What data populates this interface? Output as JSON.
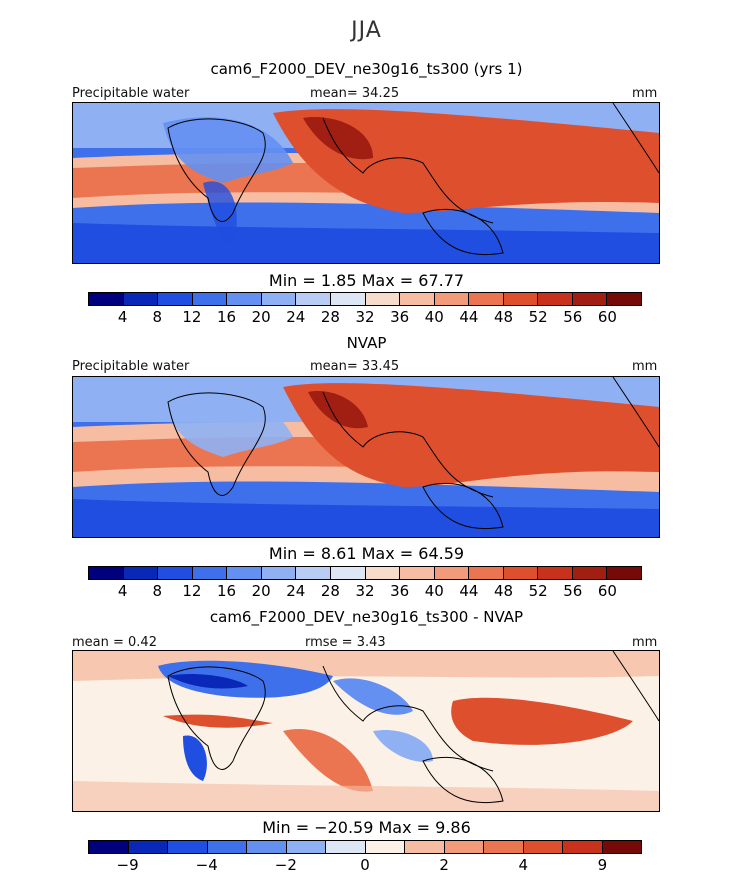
{
  "season": "JJA",
  "panels": [
    {
      "id": "model",
      "title": "cam6_F2000_DEV_ne30g16_ts300 (yrs 1)",
      "left_label": "Precipitable water",
      "center_label": "mean=  34.25",
      "units": "mm",
      "minmax": "Min =    1.85  Max =   67.77"
    },
    {
      "id": "obs",
      "title": "NVAP",
      "left_label": "Precipitable water",
      "center_label": "mean=  33.45",
      "units": "mm",
      "minmax": "Min =    8.61  Max =   64.59"
    },
    {
      "id": "diff",
      "title": "cam6_F2000_DEV_ne30g16_ts300 - NVAP",
      "left_label": "mean =    0.42",
      "center_label": "rmse =    3.43",
      "units": "mm",
      "minmax": "Min = −20.59  Max =    9.86"
    }
  ],
  "chart_data": [
    {
      "type": "heatmap",
      "title": "cam6_F2000_DEV_ne30g16_ts300 (yrs 1)",
      "variable": "Precipitable water",
      "units": "mm",
      "mean": 34.25,
      "min": 1.85,
      "max": 67.77,
      "colorbar_levels": [
        4,
        8,
        12,
        16,
        20,
        24,
        28,
        32,
        36,
        40,
        44,
        48,
        52,
        56,
        60
      ],
      "colorbar_tick_labels": [
        "4",
        "8",
        "12",
        "16",
        "20",
        "24",
        "28",
        "32",
        "36",
        "40",
        "44",
        "48",
        "52",
        "56",
        "60"
      ]
    },
    {
      "type": "heatmap",
      "title": "NVAP",
      "variable": "Precipitable water",
      "units": "mm",
      "mean": 33.45,
      "min": 8.61,
      "max": 64.59,
      "colorbar_levels": [
        4,
        8,
        12,
        16,
        20,
        24,
        28,
        32,
        36,
        40,
        44,
        48,
        52,
        56,
        60
      ],
      "colorbar_tick_labels": [
        "4",
        "8",
        "12",
        "16",
        "20",
        "24",
        "28",
        "32",
        "36",
        "40",
        "44",
        "48",
        "52",
        "56",
        "60"
      ]
    },
    {
      "type": "heatmap",
      "title": "cam6_F2000_DEV_ne30g16_ts300 - NVAP",
      "units": "mm",
      "mean": 0.42,
      "rmse": 3.43,
      "min": -20.59,
      "max": 9.86,
      "colorbar_levels": [
        -9,
        -6,
        -4,
        -3,
        -2,
        -1,
        0,
        1,
        2,
        3,
        4,
        6,
        9
      ],
      "colorbar_tick_labels": [
        "−9",
        "−4",
        "−2",
        "0",
        "2",
        "4",
        "9"
      ]
    }
  ],
  "colors": {
    "abs_scale": [
      "#00007f",
      "#0a28b8",
      "#1f4ee0",
      "#3f70ec",
      "#6490f2",
      "#8fb1f4",
      "#b8ccf4",
      "#dde6f5",
      "#f8dccb",
      "#f6bda3",
      "#f29a79",
      "#eb7551",
      "#de4f2e",
      "#c8311b",
      "#a01e12",
      "#760a08"
    ],
    "diff_scale": [
      "#00007f",
      "#0a28b8",
      "#1f4ee0",
      "#3f70ec",
      "#6490f2",
      "#8fb1f4",
      "#dde6f5",
      "#fbf1e6",
      "#f6bda3",
      "#f29a79",
      "#eb7551",
      "#de4f2e",
      "#c8311b",
      "#760a08"
    ]
  }
}
